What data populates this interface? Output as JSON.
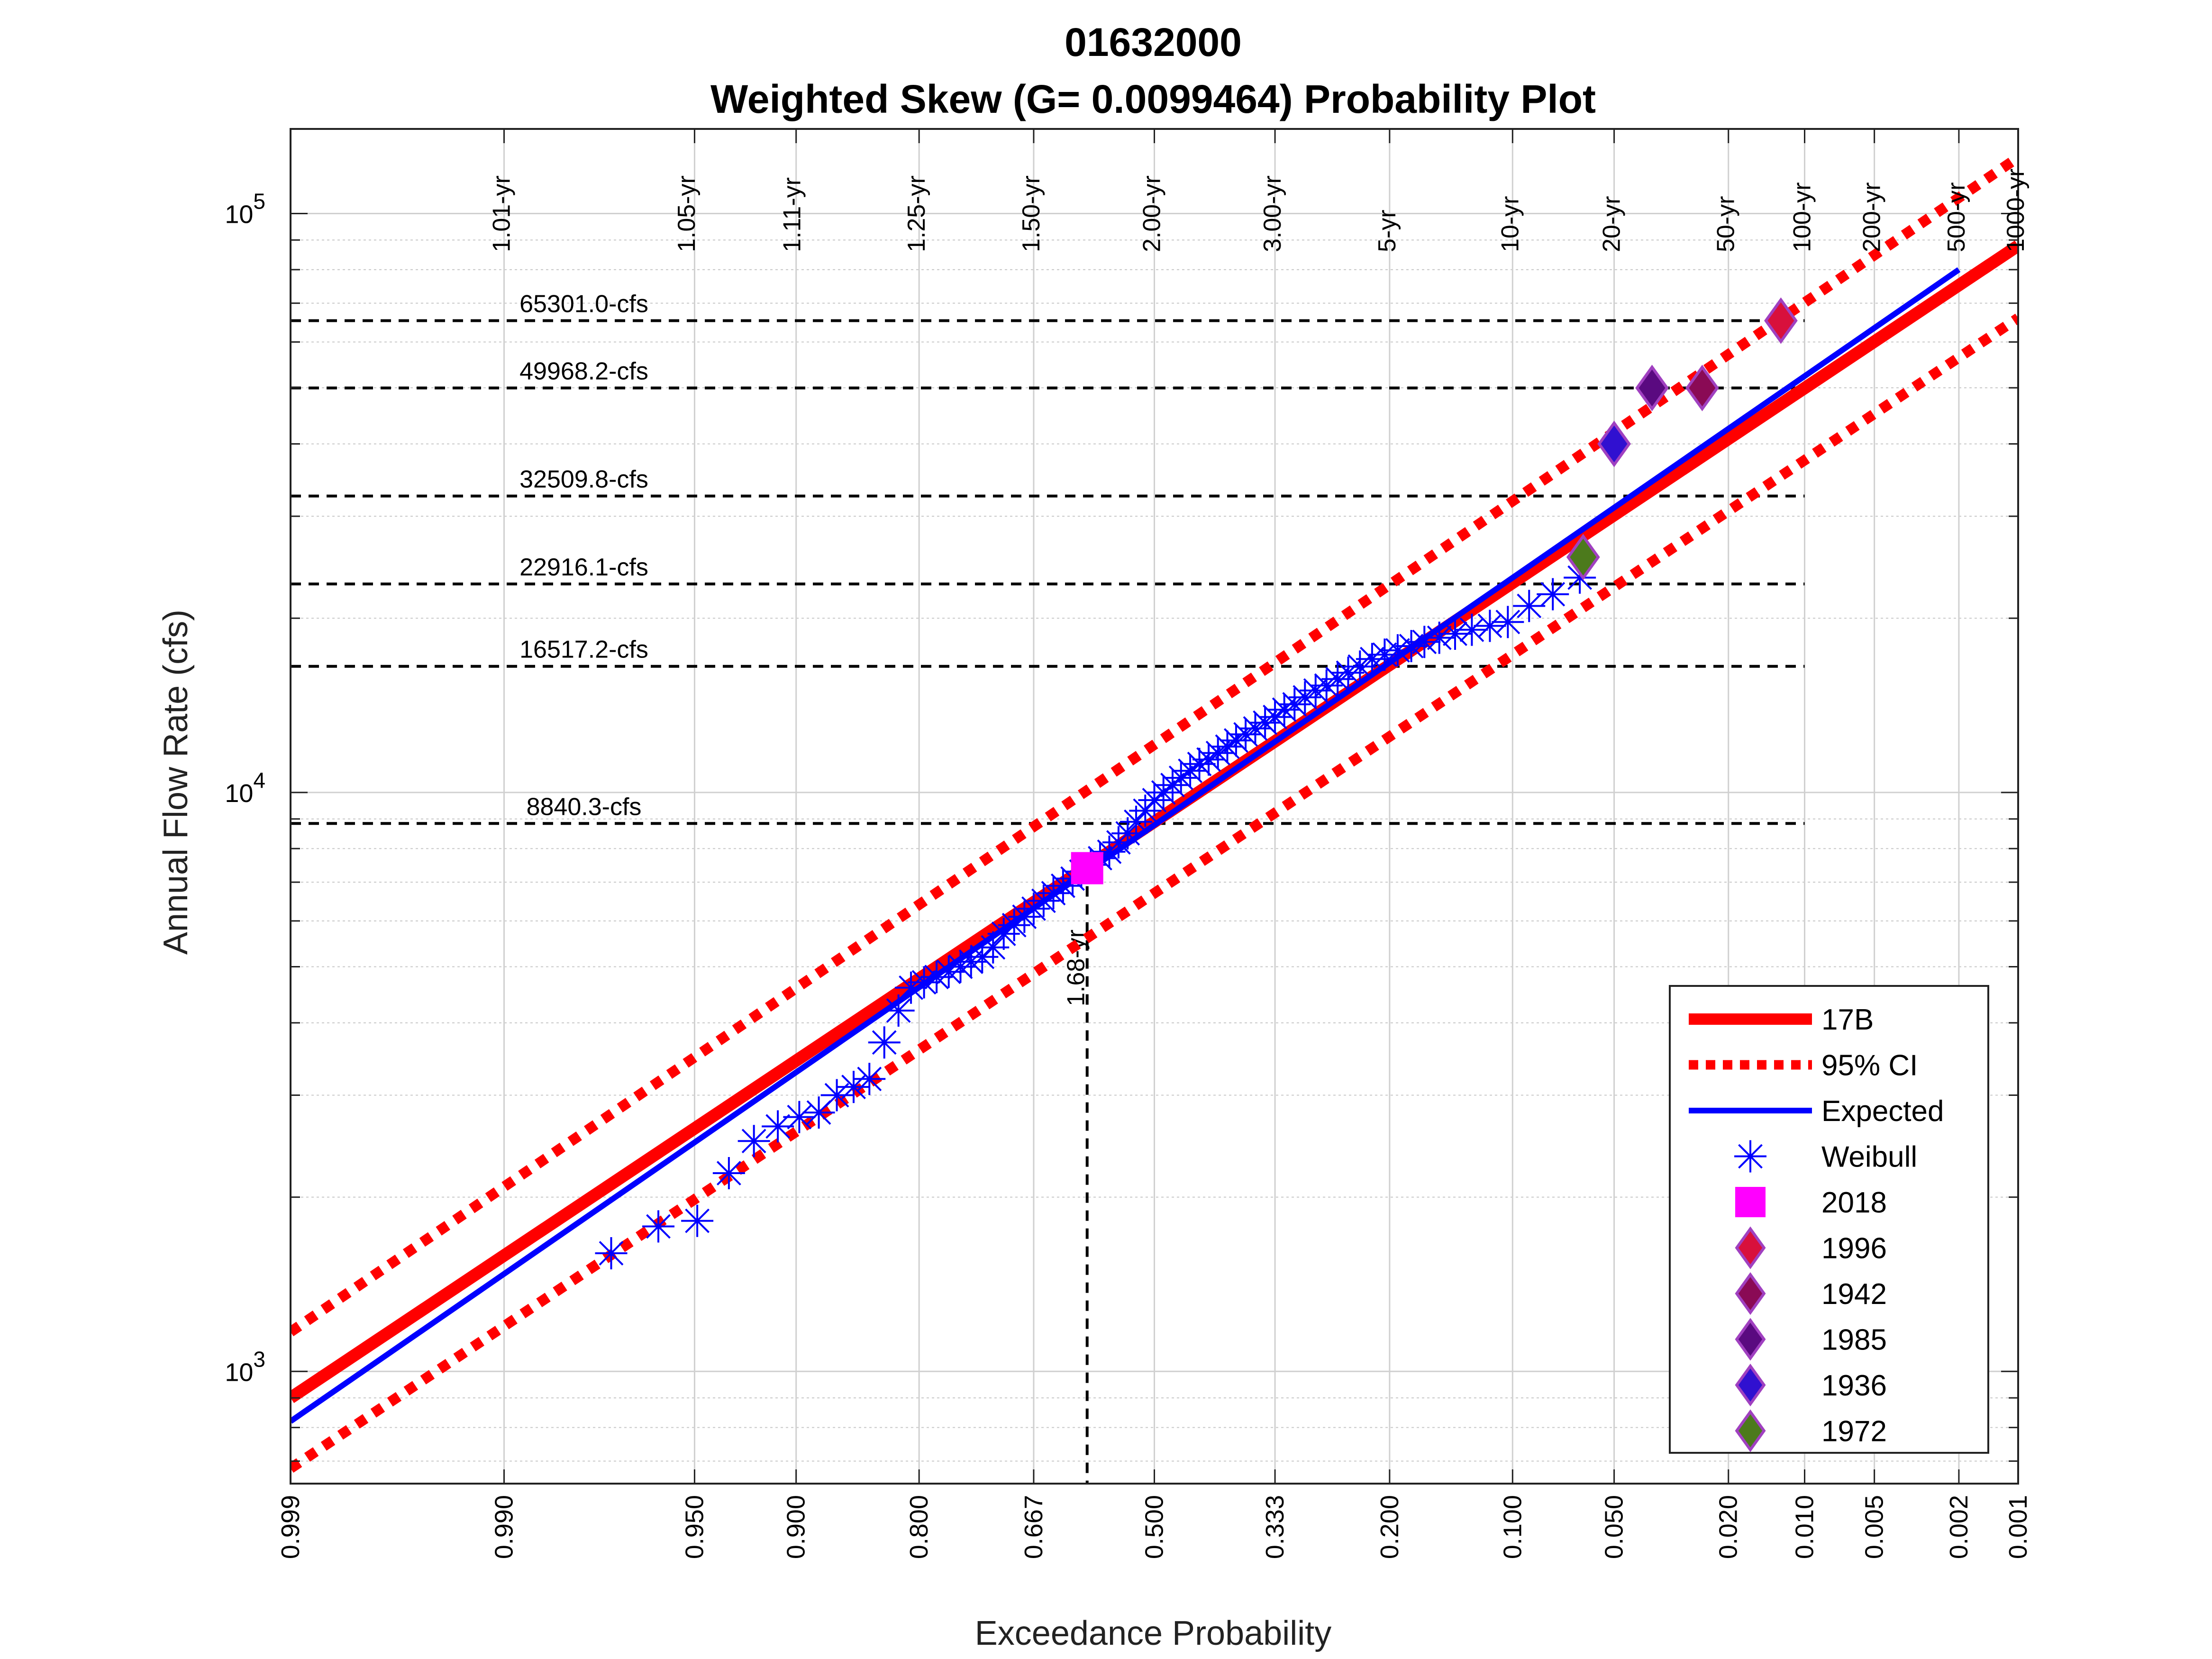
{
  "chart_data": {
    "type": "scatter",
    "title": "01632000",
    "subtitle": "Weighted Skew (G= 0.0099464) Probability Plot",
    "xlabel": "Exceedance Probability",
    "ylabel": "Annual Flow Rate (cfs)",
    "x_scale": "normal-probability (reversed)",
    "y_scale": "log",
    "xlim": [
      0.999,
      0.001
    ],
    "ylim": [
      640,
      140000
    ],
    "grid": true,
    "legend_position": "bottom-right",
    "x_ticks": [
      {
        "p": 0.999,
        "label": "0.999"
      },
      {
        "p": 0.99,
        "label": "0.990"
      },
      {
        "p": 0.95,
        "label": "0.950"
      },
      {
        "p": 0.9,
        "label": "0.900"
      },
      {
        "p": 0.8,
        "label": "0.800"
      },
      {
        "p": 0.667,
        "label": "0.667"
      },
      {
        "p": 0.5,
        "label": "0.500"
      },
      {
        "p": 0.333,
        "label": "0.333"
      },
      {
        "p": 0.2,
        "label": "0.200"
      },
      {
        "p": 0.1,
        "label": "0.100"
      },
      {
        "p": 0.05,
        "label": "0.050"
      },
      {
        "p": 0.02,
        "label": "0.020"
      },
      {
        "p": 0.01,
        "label": "0.010"
      },
      {
        "p": 0.005,
        "label": "0.005"
      },
      {
        "p": 0.002,
        "label": "0.002"
      },
      {
        "p": 0.001,
        "label": "0.001"
      }
    ],
    "y_ticks": [
      {
        "v": 1000,
        "base": "10",
        "exp": "3"
      },
      {
        "v": 10000,
        "base": "10",
        "exp": "4"
      },
      {
        "v": 100000,
        "base": "10",
        "exp": "5"
      }
    ],
    "return_periods": [
      {
        "p": 0.99,
        "label": "1.01-yr"
      },
      {
        "p": 0.952,
        "label": "1.05-yr"
      },
      {
        "p": 0.901,
        "label": "1.11-yr"
      },
      {
        "p": 0.8,
        "label": "1.25-yr"
      },
      {
        "p": 0.667,
        "label": "1.50-yr"
      },
      {
        "p": 0.5,
        "label": "2.00-yr"
      },
      {
        "p": 0.333,
        "label": "3.00-yr"
      },
      {
        "p": 0.2,
        "label": "5-yr"
      },
      {
        "p": 0.1,
        "label": "10-yr"
      },
      {
        "p": 0.05,
        "label": "20-yr"
      },
      {
        "p": 0.02,
        "label": "50-yr"
      },
      {
        "p": 0.01,
        "label": "100-yr"
      },
      {
        "p": 0.005,
        "label": "200-yr"
      },
      {
        "p": 0.002,
        "label": "500-yr"
      },
      {
        "p": 0.001,
        "label": "1000-yr"
      }
    ],
    "flow_levels": [
      {
        "v": 65301.0,
        "label": "65301.0-cfs"
      },
      {
        "v": 49968.2,
        "label": "49968.2-cfs"
      },
      {
        "v": 32509.8,
        "label": "32509.8-cfs"
      },
      {
        "v": 22916.1,
        "label": "22916.1-cfs"
      },
      {
        "v": 16517.2,
        "label": "16517.2-cfs"
      },
      {
        "v": 8840.3,
        "label": "8840.3-cfs"
      }
    ],
    "event_marker": {
      "p": 0.595,
      "value": 7400,
      "label": "1.68-yr"
    },
    "series": [
      {
        "name": "17B",
        "kind": "line",
        "color": "#ff0000",
        "p": [
          0.999,
          0.001
        ],
        "values": [
          900,
          88000
        ]
      },
      {
        "name": "95% CI",
        "kind": "dotted",
        "color": "#ff0000",
        "bands": [
          {
            "p": [
              0.999,
              0.001
            ],
            "values": [
              1170,
              125000
            ]
          },
          {
            "p": [
              0.999,
              0.001
            ],
            "values": [
              680,
              66000
            ]
          }
        ]
      },
      {
        "name": "Expected",
        "kind": "line",
        "color": "#0000ff",
        "p": [
          0.999,
          0.002
        ],
        "values": [
          820,
          80000
        ]
      },
      {
        "name": "Weibull",
        "kind": "asterisk",
        "color": "#0000ff",
        "p": [
          0.974,
          0.962,
          0.949,
          0.936,
          0.924,
          0.911,
          0.898,
          0.885,
          0.872,
          0.859,
          0.846,
          0.833,
          0.82,
          0.808,
          0.795,
          0.782,
          0.769,
          0.756,
          0.744,
          0.731,
          0.718,
          0.705,
          0.692,
          0.679,
          0.667,
          0.654,
          0.641,
          0.628,
          0.615,
          0.603,
          0.59,
          0.577,
          0.564,
          0.551,
          0.538,
          0.526,
          0.513,
          0.5,
          0.487,
          0.474,
          0.462,
          0.449,
          0.436,
          0.423,
          0.41,
          0.397,
          0.385,
          0.372,
          0.359,
          0.346,
          0.333,
          0.321,
          0.308,
          0.295,
          0.282,
          0.269,
          0.256,
          0.244,
          0.231,
          0.218,
          0.205,
          0.192,
          0.179,
          0.167,
          0.154,
          0.141,
          0.128,
          0.115,
          0.103,
          0.09,
          0.077,
          0.064
        ],
        "values": [
          1600,
          1780,
          1820,
          2200,
          2500,
          2650,
          2750,
          2800,
          3000,
          3100,
          3200,
          3700,
          4200,
          4600,
          4700,
          4800,
          4900,
          5000,
          5100,
          5200,
          5400,
          5700,
          5900,
          6100,
          6300,
          6500,
          6700,
          6900,
          7100,
          7300,
          7500,
          7700,
          7900,
          8200,
          8500,
          8900,
          9300,
          9700,
          10000,
          10300,
          10600,
          10900,
          11200,
          11400,
          11700,
          12000,
          12300,
          12600,
          12900,
          13200,
          13500,
          13900,
          14200,
          14600,
          15000,
          15300,
          15700,
          16100,
          16500,
          17000,
          17300,
          17600,
          17900,
          18200,
          18500,
          18800,
          19100,
          19400,
          19700,
          21000,
          22000,
          23500
        ]
      },
      {
        "name": "2018",
        "kind": "square",
        "color": "#ff00ff",
        "p": [
          0.595
        ],
        "values": [
          7400
        ]
      },
      {
        "name": "1996",
        "kind": "diamond",
        "color": "#d8103c",
        "p": [
          0.0125
        ],
        "values": [
          65301
        ]
      },
      {
        "name": "1942",
        "kind": "diamond",
        "color": "#8a0a55",
        "p": [
          0.025
        ],
        "values": [
          49968
        ]
      },
      {
        "name": "1985",
        "kind": "diamond",
        "color": "#5a0a80",
        "p": [
          0.0375
        ],
        "values": [
          49968
        ]
      },
      {
        "name": "1936",
        "kind": "diamond",
        "color": "#3010d0",
        "p": [
          0.05
        ],
        "values": [
          40000
        ]
      },
      {
        "name": "1972",
        "kind": "diamond",
        "color": "#4c7a1c",
        "p": [
          0.0625
        ],
        "values": [
          25500
        ]
      }
    ]
  }
}
